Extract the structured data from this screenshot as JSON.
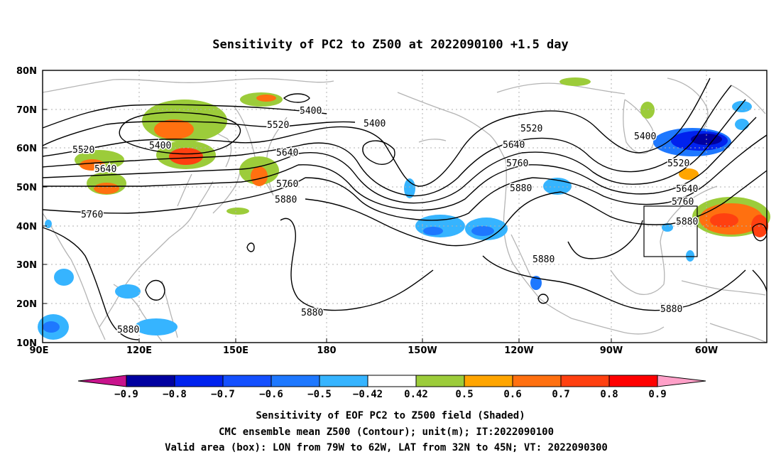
{
  "title": "Sensitivity of PC2 to Z500 at 2022090100 +1.5 day",
  "lat_ticks": [
    "80N",
    "70N",
    "60N",
    "50N",
    "40N",
    "30N",
    "20N",
    "10N"
  ],
  "lon_ticks": [
    "90E",
    "120E",
    "150E",
    "180",
    "150W",
    "120W",
    "90W",
    "60W"
  ],
  "contour_labels": [
    {
      "text": "5520"
    },
    {
      "text": "5640"
    },
    {
      "text": "5760"
    },
    {
      "text": "5400"
    },
    {
      "text": "5880"
    },
    {
      "text": "5400"
    },
    {
      "text": "5520"
    },
    {
      "text": "5640"
    },
    {
      "text": "5760"
    },
    {
      "text": "5880"
    },
    {
      "text": "5400"
    },
    {
      "text": "5520"
    },
    {
      "text": "5640"
    },
    {
      "text": "5760"
    },
    {
      "text": "5880"
    },
    {
      "text": "5880"
    },
    {
      "text": "5400"
    },
    {
      "text": "5520"
    },
    {
      "text": "5640"
    },
    {
      "text": "5760"
    },
    {
      "text": "5880"
    },
    {
      "text": "5880"
    },
    {
      "text": "5880"
    }
  ],
  "colorbar": {
    "labels": [
      "-0.9",
      "-0.8",
      "-0.7",
      "-0.6",
      "-0.5",
      "-0.42",
      "0.42",
      "0.5",
      "0.6",
      "0.7",
      "0.8",
      "0.9"
    ],
    "colors": [
      "#0000a0",
      "#0022ee",
      "#1450ff",
      "#1e78ff",
      "#36b4ff",
      "#ffffff",
      "#9ccc3a",
      "#ffa500",
      "#ff7010",
      "#ff4010",
      "#ff0000"
    ],
    "low_end_color": "#c8138c",
    "high_end_color": "#ffa0c8"
  },
  "caption": {
    "line1": "Sensitivity of EOF PC2 to Z500 field (Shaded)",
    "line2": "CMC ensemble mean Z500 (Contour); unit(m); IT:2022090100",
    "line3": "Valid area (box): LON from 79W to 62W, LAT from 32N to 45N; VT: 2022090300"
  }
}
